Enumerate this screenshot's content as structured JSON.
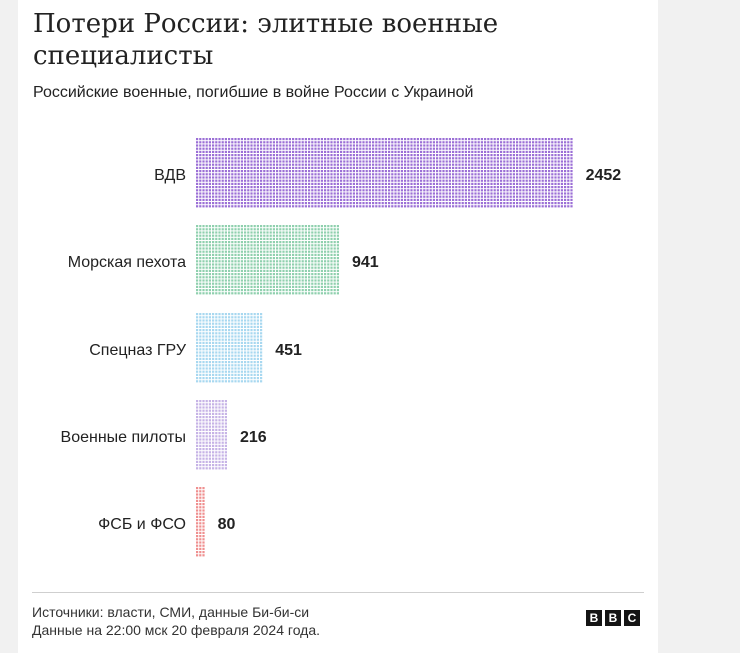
{
  "header": {
    "title": "Потери России: элитные военные специалисты",
    "subtitle": "Российские военные, погибшие в войне России с Украиной"
  },
  "footer": {
    "sources": "Источники: власти, СМИ, данные Би-би-си",
    "date_note": "Данные на 22:00 мск 20 февраля 2024 года.",
    "logo_letters": [
      "B",
      "B",
      "C"
    ]
  },
  "chart_data": {
    "type": "bar",
    "orientation": "horizontal",
    "categories": [
      "ВДВ",
      "Морская пехота",
      "Спецназ ГРУ",
      "Военные пилоты",
      "ФСБ и ФСО"
    ],
    "values": [
      2452,
      941,
      451,
      216,
      80
    ],
    "value_labels": [
      "2452",
      "941",
      "451",
      "216",
      "80"
    ],
    "colors": [
      "#9b6fd6",
      "#8fd0ae",
      "#a8d8f0",
      "#c6b3e6",
      "#ef8f8f"
    ],
    "style": "dot-matrix"
  }
}
